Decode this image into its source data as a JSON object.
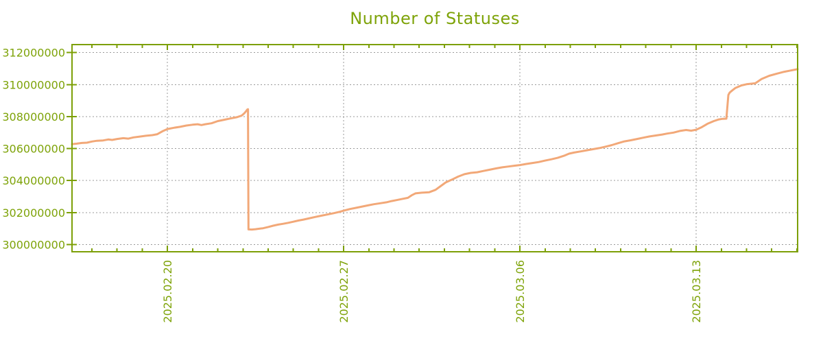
{
  "title": "Number of Statuses",
  "colors": {
    "axis": "#7c9f06",
    "tick_text": "#7ea309",
    "title_text": "#7ea309",
    "grid": "#999999",
    "line": "#f2a878",
    "background": "#ffffff"
  },
  "chart_data": {
    "type": "line",
    "title": "Number of Statuses",
    "xlabel": "",
    "ylabel": "",
    "legend": "none",
    "grid": "dotted",
    "x_day0": "2025.02.16",
    "xlim_days": [
      0.21,
      29.03
    ],
    "ylim": [
      299550000,
      312500000
    ],
    "y_ticks": [
      {
        "value": 300000000,
        "label": "300000000"
      },
      {
        "value": 302000000,
        "label": "302000000"
      },
      {
        "value": 304000000,
        "label": "304000000"
      },
      {
        "value": 306000000,
        "label": "306000000"
      },
      {
        "value": 308000000,
        "label": "308000000"
      },
      {
        "value": 310000000,
        "label": "310000000"
      },
      {
        "value": 312000000,
        "label": "312000000"
      }
    ],
    "x_ticks_major": [
      {
        "day": 4,
        "label": "2025.02.20"
      },
      {
        "day": 11,
        "label": "2025.02.27"
      },
      {
        "day": 18,
        "label": "2025.03.06"
      },
      {
        "day": 25,
        "label": "2025.03.13"
      }
    ],
    "x_ticks_minor_days": [
      1,
      2,
      3,
      4,
      5,
      6,
      7,
      8,
      9,
      10,
      11,
      12,
      13,
      14,
      15,
      16,
      17,
      18,
      19,
      20,
      21,
      22,
      23,
      24,
      25,
      26,
      27,
      28,
      29
    ],
    "series": [
      {
        "name": "statuses",
        "points": [
          [
            0.21,
            306280000
          ],
          [
            0.4,
            306310000
          ],
          [
            0.6,
            306350000
          ],
          [
            0.8,
            306370000
          ],
          [
            1.0,
            306440000
          ],
          [
            1.2,
            306490000
          ],
          [
            1.45,
            306510000
          ],
          [
            1.65,
            306570000
          ],
          [
            1.8,
            306540000
          ],
          [
            2.0,
            306600000
          ],
          [
            2.25,
            306650000
          ],
          [
            2.45,
            306620000
          ],
          [
            2.65,
            306700000
          ],
          [
            2.9,
            306750000
          ],
          [
            3.15,
            306800000
          ],
          [
            3.4,
            306840000
          ],
          [
            3.6,
            306900000
          ],
          [
            3.8,
            307080000
          ],
          [
            4.0,
            307220000
          ],
          [
            4.25,
            307300000
          ],
          [
            4.5,
            307360000
          ],
          [
            4.75,
            307440000
          ],
          [
            5.0,
            307490000
          ],
          [
            5.2,
            307520000
          ],
          [
            5.35,
            307470000
          ],
          [
            5.5,
            307520000
          ],
          [
            5.75,
            307580000
          ],
          [
            6.0,
            307720000
          ],
          [
            6.25,
            307800000
          ],
          [
            6.5,
            307880000
          ],
          [
            6.75,
            307960000
          ],
          [
            6.95,
            308060000
          ],
          [
            7.05,
            308200000
          ],
          [
            7.12,
            308330000
          ],
          [
            7.17,
            308440000
          ],
          [
            7.2,
            308460000
          ],
          [
            7.22,
            300950000
          ],
          [
            7.35,
            300940000
          ],
          [
            7.5,
            300960000
          ],
          [
            7.65,
            300990000
          ],
          [
            7.8,
            301020000
          ],
          [
            8.0,
            301100000
          ],
          [
            8.2,
            301180000
          ],
          [
            8.4,
            301250000
          ],
          [
            8.6,
            301300000
          ],
          [
            8.8,
            301360000
          ],
          [
            9.0,
            301430000
          ],
          [
            9.2,
            301500000
          ],
          [
            9.4,
            301560000
          ],
          [
            9.6,
            301630000
          ],
          [
            9.85,
            301720000
          ],
          [
            10.1,
            301800000
          ],
          [
            10.35,
            301880000
          ],
          [
            10.6,
            301960000
          ],
          [
            10.85,
            302050000
          ],
          [
            11.0,
            302120000
          ],
          [
            11.25,
            302220000
          ],
          [
            11.5,
            302300000
          ],
          [
            11.75,
            302380000
          ],
          [
            12.0,
            302460000
          ],
          [
            12.2,
            302520000
          ],
          [
            12.45,
            302580000
          ],
          [
            12.7,
            302640000
          ],
          [
            12.9,
            302720000
          ],
          [
            13.1,
            302780000
          ],
          [
            13.35,
            302860000
          ],
          [
            13.55,
            302920000
          ],
          [
            13.7,
            303080000
          ],
          [
            13.85,
            303200000
          ],
          [
            14.1,
            303240000
          ],
          [
            14.4,
            303270000
          ],
          [
            14.65,
            303420000
          ],
          [
            14.85,
            303650000
          ],
          [
            15.05,
            303880000
          ],
          [
            15.3,
            304060000
          ],
          [
            15.55,
            304250000
          ],
          [
            15.8,
            304400000
          ],
          [
            16.05,
            304480000
          ],
          [
            16.3,
            304520000
          ],
          [
            16.55,
            304600000
          ],
          [
            16.8,
            304680000
          ],
          [
            17.05,
            304760000
          ],
          [
            17.3,
            304830000
          ],
          [
            17.55,
            304880000
          ],
          [
            17.8,
            304930000
          ],
          [
            18.0,
            304970000
          ],
          [
            18.25,
            305040000
          ],
          [
            18.5,
            305100000
          ],
          [
            18.75,
            305160000
          ],
          [
            19.0,
            305250000
          ],
          [
            19.25,
            305330000
          ],
          [
            19.5,
            305420000
          ],
          [
            19.75,
            305550000
          ],
          [
            19.95,
            305680000
          ],
          [
            20.15,
            305750000
          ],
          [
            20.4,
            305820000
          ],
          [
            20.65,
            305890000
          ],
          [
            20.9,
            305960000
          ],
          [
            21.15,
            306030000
          ],
          [
            21.4,
            306120000
          ],
          [
            21.65,
            306220000
          ],
          [
            21.9,
            306340000
          ],
          [
            22.15,
            306450000
          ],
          [
            22.4,
            306520000
          ],
          [
            22.65,
            306600000
          ],
          [
            22.9,
            306680000
          ],
          [
            23.15,
            306760000
          ],
          [
            23.4,
            306820000
          ],
          [
            23.65,
            306880000
          ],
          [
            23.85,
            306940000
          ],
          [
            24.1,
            307000000
          ],
          [
            24.35,
            307100000
          ],
          [
            24.6,
            307160000
          ],
          [
            24.8,
            307120000
          ],
          [
            25.0,
            307180000
          ],
          [
            25.2,
            307320000
          ],
          [
            25.45,
            307550000
          ],
          [
            25.7,
            307720000
          ],
          [
            25.9,
            307820000
          ],
          [
            26.05,
            307860000
          ],
          [
            26.2,
            307870000
          ],
          [
            26.28,
            309350000
          ],
          [
            26.33,
            309500000
          ],
          [
            26.42,
            309620000
          ],
          [
            26.55,
            309780000
          ],
          [
            26.8,
            309950000
          ],
          [
            27.0,
            310020000
          ],
          [
            27.35,
            310080000
          ],
          [
            27.6,
            310350000
          ],
          [
            27.9,
            310550000
          ],
          [
            28.2,
            310680000
          ],
          [
            28.5,
            310800000
          ],
          [
            28.75,
            310880000
          ],
          [
            28.95,
            310940000
          ],
          [
            29.03,
            310970000
          ]
        ]
      }
    ]
  }
}
